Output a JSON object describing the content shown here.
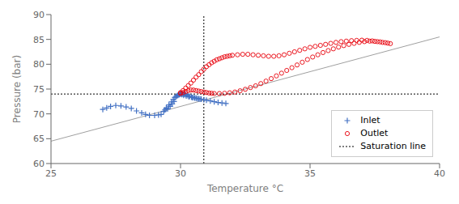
{
  "chart_data": {
    "type": "scatter",
    "xlabel": "Temperature °C",
    "ylabel": "Pressure (bar)",
    "xlim": [
      25,
      40
    ],
    "ylim": [
      60,
      90
    ],
    "xticks": [
      25,
      30,
      35,
      40
    ],
    "yticks": [
      60,
      65,
      70,
      75,
      80,
      85,
      90
    ],
    "grid": false,
    "legend": "lower right",
    "series": [
      {
        "name": "Inlet",
        "type": "scatter",
        "marker": "plus",
        "color": "#4472C4",
        "values": [
          [
            27.0,
            70.9
          ],
          [
            27.15,
            71.2
          ],
          [
            27.3,
            71.5
          ],
          [
            27.5,
            71.7
          ],
          [
            27.7,
            71.6
          ],
          [
            27.9,
            71.4
          ],
          [
            28.1,
            71.1
          ],
          [
            28.3,
            70.6
          ],
          [
            28.5,
            70.2
          ],
          [
            28.65,
            69.9
          ],
          [
            28.8,
            69.7
          ],
          [
            29.0,
            69.7
          ],
          [
            29.15,
            69.8
          ],
          [
            29.25,
            69.9
          ],
          [
            29.35,
            70.5
          ],
          [
            29.45,
            71.2
          ],
          [
            29.55,
            71.8
          ],
          [
            29.65,
            72.4
          ],
          [
            29.72,
            72.9
          ],
          [
            29.78,
            73.3
          ],
          [
            29.83,
            73.5
          ],
          [
            29.87,
            73.65
          ],
          [
            29.9,
            73.75
          ],
          [
            29.93,
            73.85
          ],
          [
            29.96,
            73.9
          ],
          [
            29.98,
            74.0
          ],
          [
            30.0,
            74.05
          ],
          [
            30.03,
            74.05
          ],
          [
            30.06,
            74.05
          ],
          [
            30.1,
            74.0
          ],
          [
            30.15,
            73.95
          ],
          [
            30.2,
            73.85
          ],
          [
            30.28,
            73.7
          ],
          [
            30.35,
            73.55
          ],
          [
            30.42,
            73.4
          ],
          [
            30.5,
            73.3
          ],
          [
            30.6,
            73.15
          ],
          [
            30.7,
            73.05
          ],
          [
            30.8,
            72.95
          ],
          [
            30.9,
            72.85
          ],
          [
            31.0,
            72.75
          ],
          [
            31.15,
            72.6
          ],
          [
            31.3,
            72.45
          ],
          [
            31.45,
            72.3
          ],
          [
            31.6,
            72.2
          ],
          [
            31.75,
            72.1
          ],
          [
            29.4,
            70.8
          ],
          [
            29.5,
            71.0
          ],
          [
            29.6,
            71.5
          ],
          [
            29.68,
            72.0
          ],
          [
            29.75,
            72.5
          ],
          [
            30.05,
            73.9
          ],
          [
            30.12,
            73.75
          ],
          [
            30.22,
            73.6
          ],
          [
            30.32,
            73.45
          ],
          [
            30.45,
            73.3
          ],
          [
            30.55,
            73.2
          ],
          [
            30.65,
            73.1
          ],
          [
            30.75,
            73.0
          ]
        ]
      },
      {
        "name": "Outlet",
        "type": "scatter",
        "marker": "circle",
        "color": "#E8000A",
        "values": [
          [
            30.0,
            74.3
          ],
          [
            30.1,
            74.7
          ],
          [
            30.2,
            75.2
          ],
          [
            30.3,
            75.7
          ],
          [
            30.4,
            76.2
          ],
          [
            30.5,
            76.8
          ],
          [
            30.6,
            77.4
          ],
          [
            30.7,
            77.9
          ],
          [
            30.8,
            78.5
          ],
          [
            30.9,
            79.0
          ],
          [
            31.0,
            79.5
          ],
          [
            31.1,
            79.9
          ],
          [
            31.2,
            80.3
          ],
          [
            31.3,
            80.6
          ],
          [
            31.4,
            80.9
          ],
          [
            31.5,
            81.1
          ],
          [
            31.6,
            81.3
          ],
          [
            31.7,
            81.5
          ],
          [
            31.8,
            81.6
          ],
          [
            31.9,
            81.7
          ],
          [
            32.0,
            81.8
          ],
          [
            32.2,
            81.9
          ],
          [
            32.4,
            82.0
          ],
          [
            32.6,
            82.0
          ],
          [
            32.8,
            81.9
          ],
          [
            33.0,
            81.8
          ],
          [
            33.2,
            81.7
          ],
          [
            33.4,
            81.6
          ],
          [
            33.6,
            81.6
          ],
          [
            33.8,
            81.7
          ],
          [
            34.0,
            81.9
          ],
          [
            34.2,
            82.2
          ],
          [
            34.4,
            82.5
          ],
          [
            34.6,
            82.8
          ],
          [
            34.8,
            83.1
          ],
          [
            35.0,
            83.4
          ],
          [
            35.2,
            83.6
          ],
          [
            35.4,
            83.8
          ],
          [
            35.6,
            84.0
          ],
          [
            35.8,
            84.2
          ],
          [
            36.0,
            84.4
          ],
          [
            36.2,
            84.55
          ],
          [
            36.4,
            84.65
          ],
          [
            36.6,
            84.75
          ],
          [
            36.8,
            84.8
          ],
          [
            37.0,
            84.85
          ],
          [
            37.2,
            84.8
          ],
          [
            37.4,
            84.7
          ],
          [
            37.6,
            84.55
          ],
          [
            37.8,
            84.4
          ],
          [
            38.0,
            84.25
          ],
          [
            30.0,
            74.1
          ],
          [
            30.1,
            74.3
          ],
          [
            30.2,
            74.5
          ],
          [
            30.3,
            74.7
          ],
          [
            30.4,
            74.8
          ],
          [
            30.5,
            74.8
          ],
          [
            30.6,
            74.7
          ],
          [
            30.7,
            74.6
          ],
          [
            30.8,
            74.5
          ],
          [
            30.9,
            74.4
          ],
          [
            31.0,
            74.3
          ],
          [
            31.1,
            74.2
          ],
          [
            31.2,
            74.15
          ],
          [
            31.3,
            74.1
          ],
          [
            31.5,
            74.1
          ],
          [
            31.7,
            74.15
          ],
          [
            31.9,
            74.25
          ],
          [
            32.1,
            74.4
          ],
          [
            32.3,
            74.65
          ],
          [
            32.5,
            74.95
          ],
          [
            32.7,
            75.3
          ],
          [
            32.9,
            75.65
          ],
          [
            33.1,
            76.1
          ],
          [
            33.3,
            76.6
          ],
          [
            33.5,
            77.1
          ],
          [
            33.7,
            77.65
          ],
          [
            33.9,
            78.2
          ],
          [
            34.1,
            78.75
          ],
          [
            34.3,
            79.3
          ],
          [
            34.5,
            79.85
          ],
          [
            34.7,
            80.4
          ],
          [
            34.9,
            80.95
          ],
          [
            35.1,
            81.45
          ],
          [
            35.3,
            81.9
          ],
          [
            35.5,
            82.35
          ],
          [
            35.7,
            82.75
          ],
          [
            35.9,
            83.1
          ],
          [
            36.1,
            83.45
          ],
          [
            36.3,
            83.75
          ],
          [
            36.5,
            84.0
          ],
          [
            36.7,
            84.2
          ],
          [
            36.9,
            84.4
          ],
          [
            37.1,
            84.55
          ],
          [
            37.3,
            84.65
          ],
          [
            37.5,
            84.6
          ],
          [
            37.7,
            84.5
          ],
          [
            37.9,
            84.35
          ],
          [
            38.1,
            84.15
          ]
        ]
      },
      {
        "name": "Saturation line",
        "type": "reference",
        "line_style": "dotted",
        "color": "#000000",
        "x": 30.9,
        "y": 74.0
      },
      {
        "type": "line",
        "line_style": "solid",
        "color": "#A0A0A0",
        "values": [
          [
            25,
            64.5
          ],
          [
            40,
            85.5
          ]
        ]
      }
    ]
  }
}
